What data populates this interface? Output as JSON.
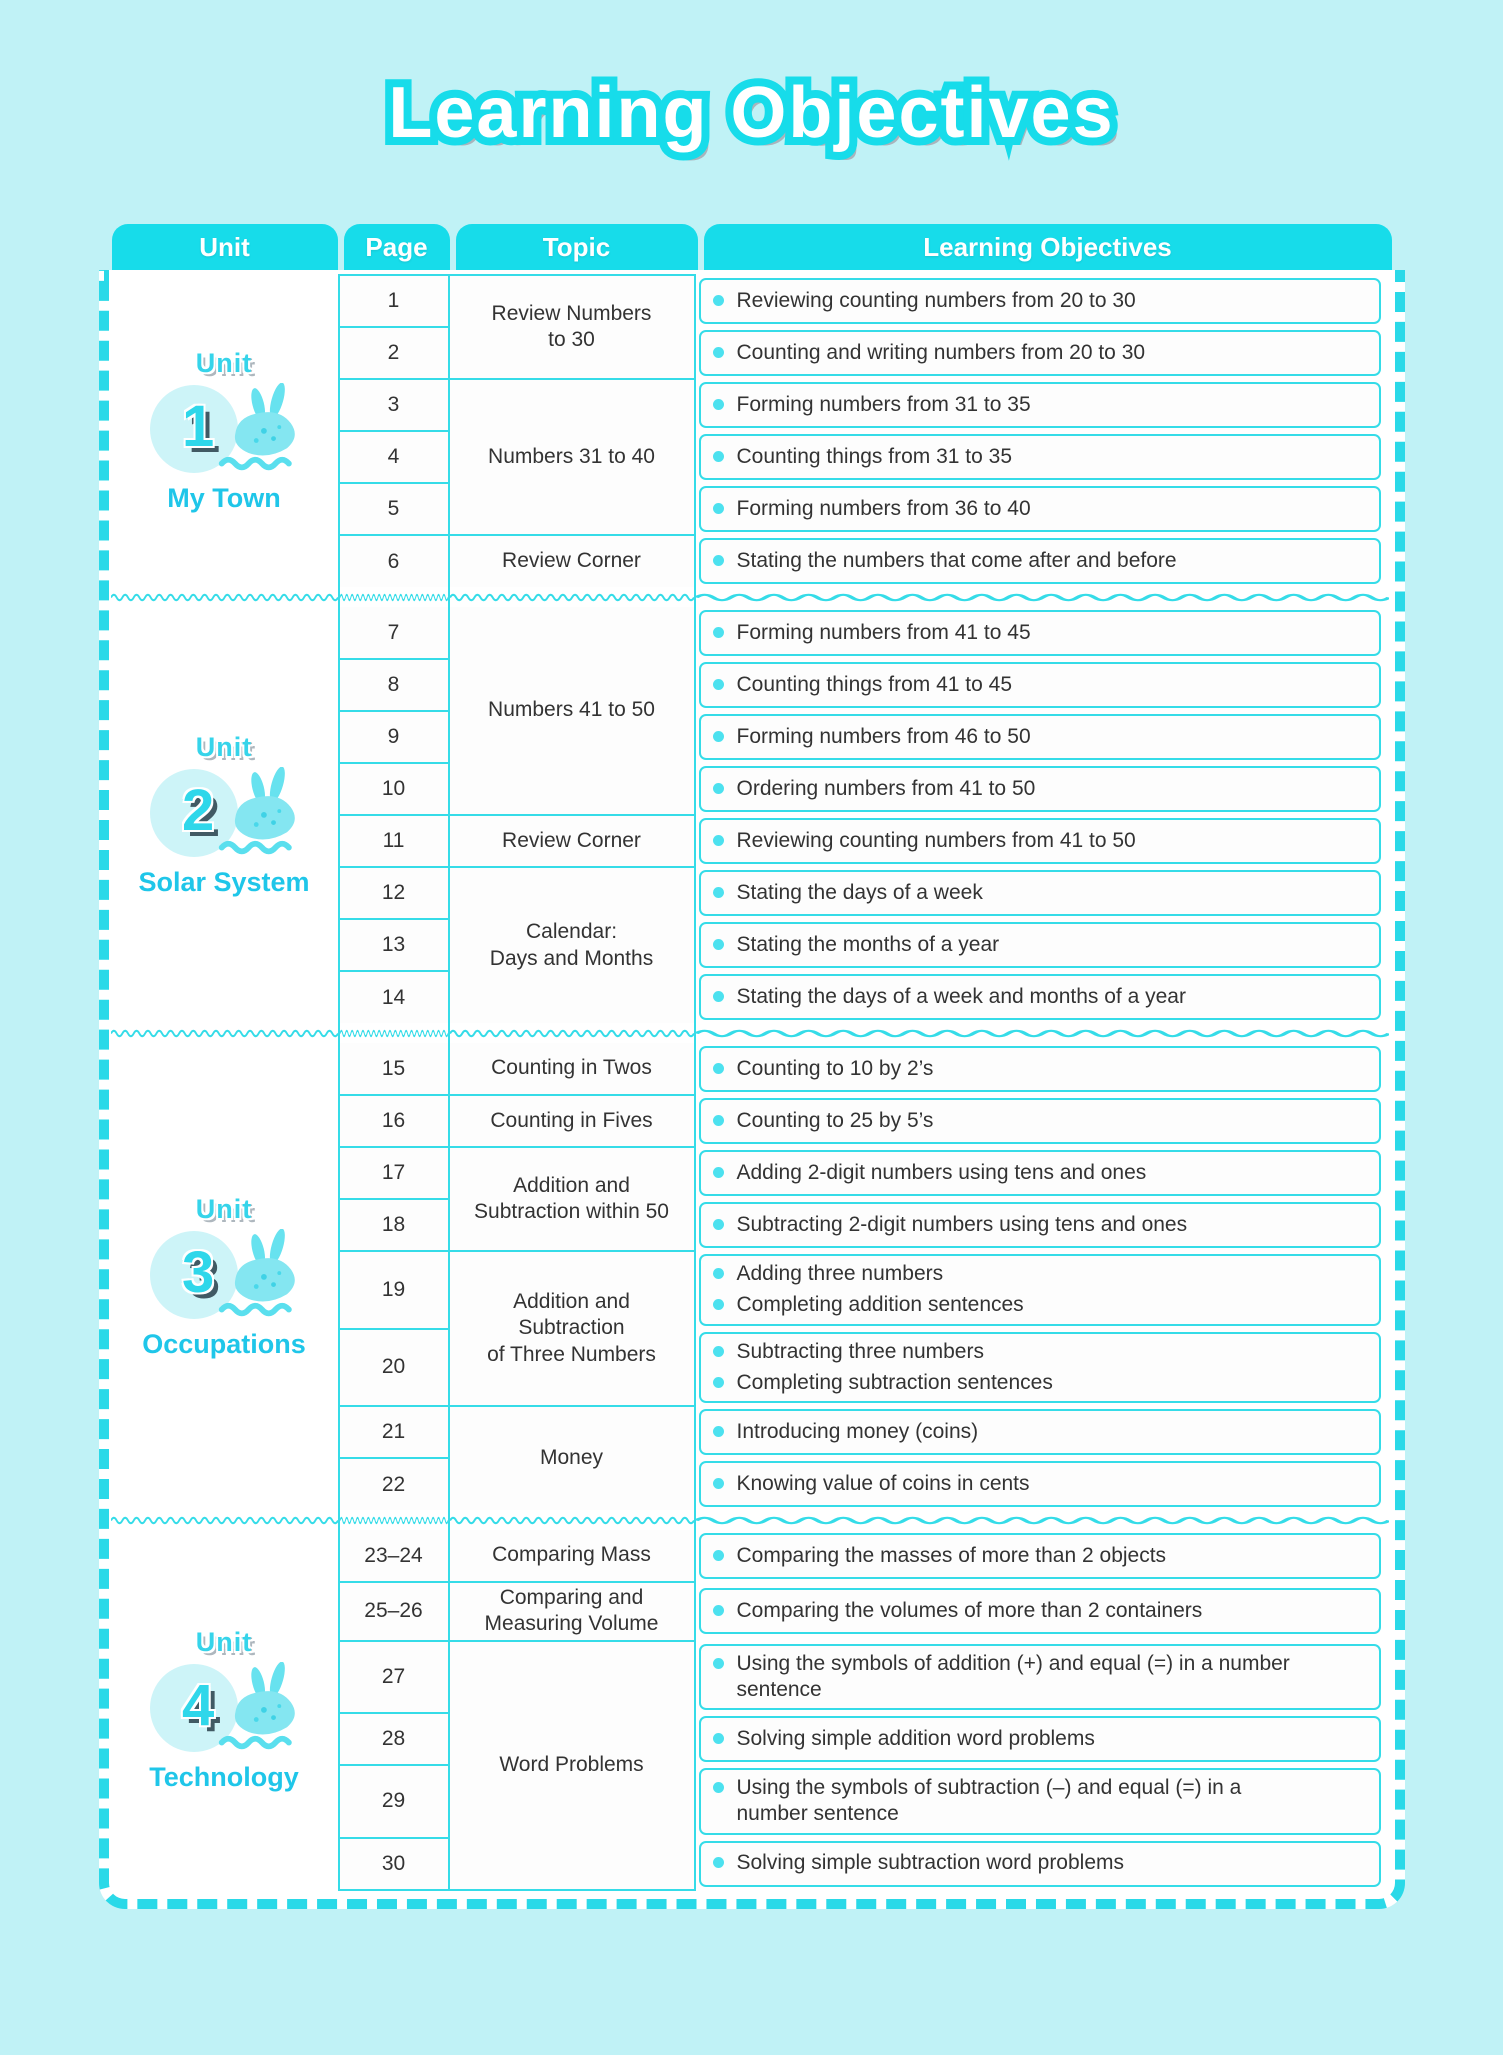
{
  "title": "Learning Objectives",
  "colors": {
    "header_cyan": "#17dcea",
    "grid_cyan": "#35dce8",
    "page_bg": "#c0f2f6",
    "text_dark": "#333333",
    "bullet_cyan": "#4ce1ef",
    "unit_name_cyan": "#1fc6e9",
    "number_shadow_slate": "#415a64"
  },
  "header": {
    "columns": [
      "Unit",
      "Page",
      "Topic",
      "Learning Objectives"
    ]
  },
  "units": [
    {
      "label": "Unit",
      "number": "1",
      "name": "My Town",
      "mascot": "bunny-snail-mascot",
      "rows": [
        {
          "page": "1",
          "topic": "Review Numbers\nto 30",
          "topic_span": 2,
          "objectives": [
            "Reviewing counting numbers from 20 to 30"
          ]
        },
        {
          "page": "2",
          "objectives": [
            "Counting and writing numbers from 20 to 30"
          ]
        },
        {
          "page": "3",
          "topic": "Numbers 31 to 40",
          "topic_span": 3,
          "objectives": [
            "Forming numbers from 31 to 35"
          ]
        },
        {
          "page": "4",
          "objectives": [
            "Counting things from 31 to 35"
          ]
        },
        {
          "page": "5",
          "objectives": [
            "Forming numbers from 36 to 40"
          ]
        },
        {
          "page": "6",
          "topic": "Review Corner",
          "topic_span": 1,
          "objectives": [
            "Stating the numbers that come after and before"
          ]
        }
      ]
    },
    {
      "label": "Unit",
      "number": "2",
      "name": "Solar System",
      "mascot": "bunny-snail-mascot",
      "rows": [
        {
          "page": "7",
          "topic": "Numbers 41 to 50",
          "topic_span": 4,
          "objectives": [
            "Forming numbers from 41 to 45"
          ]
        },
        {
          "page": "8",
          "objectives": [
            "Counting things from 41 to 45"
          ]
        },
        {
          "page": "9",
          "objectives": [
            "Forming numbers from 46 to 50"
          ]
        },
        {
          "page": "10",
          "objectives": [
            "Ordering numbers from 41 to 50"
          ]
        },
        {
          "page": "11",
          "topic": "Review Corner",
          "topic_span": 1,
          "objectives": [
            "Reviewing counting numbers from 41 to 50"
          ]
        },
        {
          "page": "12",
          "topic": "Calendar:\nDays and Months",
          "topic_span": 3,
          "objectives": [
            "Stating the days of a week"
          ]
        },
        {
          "page": "13",
          "objectives": [
            "Stating the months of a year"
          ]
        },
        {
          "page": "14",
          "objectives": [
            "Stating the days of a week and months of a year"
          ]
        }
      ]
    },
    {
      "label": "Unit",
      "number": "3",
      "name": "Occupations",
      "mascot": "bunny-snail-mascot",
      "rows": [
        {
          "page": "15",
          "topic": "Counting in Twos",
          "topic_span": 1,
          "objectives": [
            "Counting to 10 by 2’s"
          ]
        },
        {
          "page": "16",
          "topic": "Counting in Fives",
          "topic_span": 1,
          "objectives": [
            "Counting to 25 by 5’s"
          ]
        },
        {
          "page": "17",
          "topic": "Addition and\nSubtraction within 50",
          "topic_span": 2,
          "objectives": [
            "Adding 2-digit numbers using tens and ones"
          ]
        },
        {
          "page": "18",
          "objectives": [
            "Subtracting 2-digit numbers using tens and ones"
          ]
        },
        {
          "page": "19",
          "topic": "Addition and\nSubtraction\nof Three Numbers",
          "topic_span": 2,
          "objectives": [
            "Adding three numbers",
            "Completing addition sentences"
          ]
        },
        {
          "page": "20",
          "objectives": [
            "Subtracting three numbers",
            "Completing subtraction sentences"
          ]
        },
        {
          "page": "21",
          "topic": "Money",
          "topic_span": 2,
          "objectives": [
            "Introducing money (coins)"
          ]
        },
        {
          "page": "22",
          "objectives": [
            "Knowing value of coins in cents"
          ]
        }
      ]
    },
    {
      "label": "Unit",
      "number": "4",
      "name": "Technology",
      "mascot": "bunny-snail-mascot",
      "rows": [
        {
          "page": "23–24",
          "topic": "Comparing Mass",
          "topic_span": 1,
          "objectives": [
            "Comparing the masses of more than 2 objects"
          ]
        },
        {
          "page": "25–26",
          "topic": "Comparing and\nMeasuring Volume",
          "topic_span": 1,
          "objectives": [
            "Comparing the volumes of more than 2 containers"
          ]
        },
        {
          "page": "27",
          "topic": "Word Problems",
          "topic_span": 4,
          "objectives": [
            "Using the symbols of addition (+) and equal (=) in a number\nsentence"
          ]
        },
        {
          "page": "28",
          "objectives": [
            "Solving simple addition word problems"
          ]
        },
        {
          "page": "29",
          "objectives": [
            "Using the symbols of subtraction (–) and equal (=) in a\nnumber sentence"
          ]
        },
        {
          "page": "30",
          "objectives": [
            "Solving simple subtraction word problems"
          ]
        }
      ]
    }
  ]
}
